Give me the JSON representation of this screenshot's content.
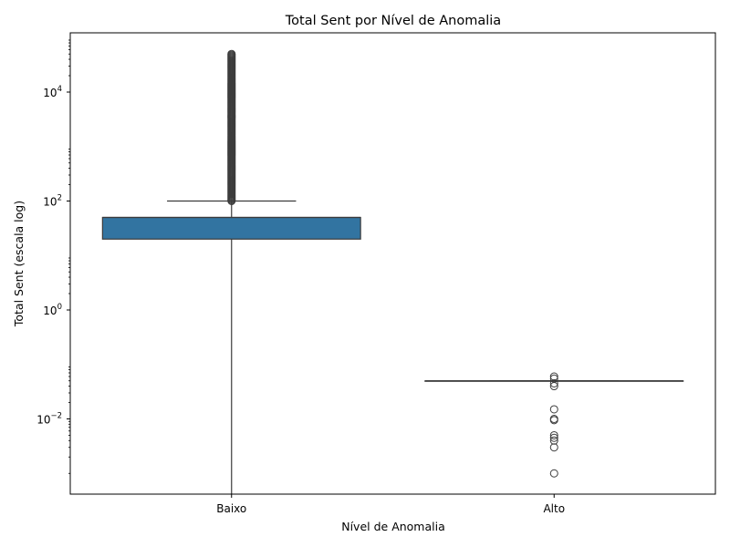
{
  "chart_data": {
    "type": "box",
    "title": "Total Sent por Nível de Anomalia",
    "xlabel": "Nível de Anomalia",
    "ylabel": "Total Sent (escala log)",
    "yscale": "log",
    "ylim": [
      0.00025,
      120000
    ],
    "y_ticks": [
      {
        "value": 0.01,
        "base": "10",
        "exp": "−2"
      },
      {
        "value": 1,
        "base": "10",
        "exp": "0"
      },
      {
        "value": 100,
        "base": "10",
        "exp": "2"
      },
      {
        "value": 10000,
        "base": "10",
        "exp": "4"
      }
    ],
    "categories": [
      "Baixo",
      "Alto"
    ],
    "colors": {
      "box": "#3274a1",
      "line": "#3c3c3c"
    },
    "boxes": [
      {
        "category": "Baixo",
        "whisker_low": 0.00025,
        "q1": 20,
        "median": 50,
        "q3": 50,
        "whisker_high": 100,
        "outliers_min": 100,
        "outliers_max": 50000
      },
      {
        "category": "Alto",
        "whisker_low": 0.05,
        "q1": 0.05,
        "median": 0.05,
        "q3": 0.05,
        "whisker_high": 0.05,
        "outliers": [
          0.06,
          0.055,
          0.045,
          0.04,
          0.015,
          0.01,
          0.0095,
          0.005,
          0.0045,
          0.004,
          0.003,
          0.001
        ]
      }
    ]
  }
}
